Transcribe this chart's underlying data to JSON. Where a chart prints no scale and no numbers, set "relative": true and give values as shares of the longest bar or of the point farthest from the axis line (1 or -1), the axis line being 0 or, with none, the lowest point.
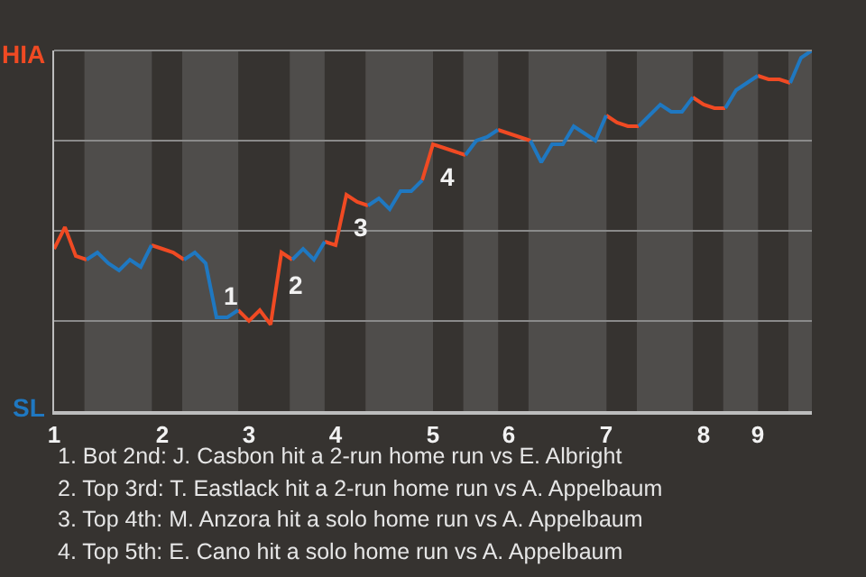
{
  "chart_data": {
    "type": "line",
    "relative": true,
    "categories": [
      "1",
      null,
      null,
      null,
      null,
      null,
      null,
      null,
      null,
      null,
      "2",
      null,
      null,
      null,
      null,
      null,
      null,
      null,
      "3",
      null,
      null,
      null,
      null,
      null,
      null,
      null,
      "4",
      null,
      null,
      null,
      null,
      null,
      null,
      null,
      null,
      "5",
      null,
      null,
      null,
      null,
      null,
      null,
      "6",
      null,
      null,
      null,
      null,
      null,
      null,
      null,
      null,
      "7",
      null,
      null,
      null,
      null,
      null,
      null,
      null,
      null,
      "8",
      null,
      null,
      null,
      null,
      "9",
      null,
      null,
      null,
      null,
      null
    ],
    "series": [
      {
        "color": "#f04a23",
        "values": [
          0.45,
          0.51,
          0.43,
          0.42,
          null,
          null,
          null,
          null,
          null,
          0.46,
          0.45,
          0.44,
          0.42,
          null,
          null,
          null,
          null,
          0.28,
          0.25,
          0.28,
          0.24,
          0.44,
          0.42,
          null,
          null,
          0.47,
          0.46,
          0.6,
          0.58,
          0.57,
          null,
          null,
          null,
          null,
          0.64,
          0.74,
          0.73,
          0.72,
          0.71,
          null,
          null,
          0.78,
          0.77,
          0.76,
          0.75,
          null,
          null,
          null,
          null,
          null,
          null,
          0.82,
          0.8,
          0.79,
          0.79,
          null,
          null,
          null,
          null,
          0.87,
          0.85,
          0.84,
          0.84,
          null,
          null,
          0.93,
          0.92,
          0.92,
          0.91,
          null,
          null
        ]
      },
      {
        "color": "#1f78c1",
        "values": [
          null,
          null,
          null,
          0.42,
          0.44,
          0.41,
          0.39,
          0.42,
          0.4,
          0.46,
          null,
          null,
          0.42,
          0.44,
          0.41,
          0.26,
          0.26,
          0.28,
          null,
          null,
          null,
          null,
          0.42,
          0.45,
          0.42,
          0.47,
          null,
          null,
          null,
          0.57,
          0.59,
          0.56,
          0.61,
          0.61,
          0.64,
          null,
          null,
          null,
          0.71,
          0.75,
          0.76,
          0.78,
          null,
          null,
          0.75,
          0.69,
          0.74,
          0.74,
          0.79,
          0.77,
          0.75,
          0.82,
          null,
          null,
          0.79,
          0.82,
          0.85,
          0.83,
          0.83,
          0.87,
          null,
          null,
          0.84,
          0.89,
          0.91,
          0.93,
          null,
          null,
          0.91,
          0.98,
          1
        ]
      }
    ],
    "ref_lines": [
      {
        "axis": "y",
        "value": 0.25,
        "color": "#8a8a8a"
      },
      {
        "axis": "y",
        "value": 0.5,
        "color": "#8a8a8a"
      },
      {
        "axis": "y",
        "value": 0.75,
        "color": "#8a8a8a"
      }
    ],
    "annotations": [
      "HIA",
      "SL",
      "1",
      "2",
      "3",
      "4",
      "1. Bot 2nd: J. Casbon hit a 2-run home run vs E. Albright",
      "2. Top 3rd: T. Eastlack hit a 2-run home run vs A. Appelbaum",
      "3. Top 4th: M. Anzora hit a solo home run vs A. Appelbaum",
      "4. Top 5th: E. Cano hit a solo home run vs A. Appelbaum"
    ]
  }
}
